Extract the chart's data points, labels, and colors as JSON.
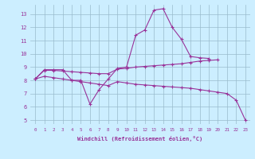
{
  "xlabel": "Windchill (Refroidissement éolien,°C)",
  "background_color": "#cceeff",
  "line_color": "#993399",
  "grid_color": "#99bbcc",
  "xlim": [
    -0.5,
    23.5
  ],
  "ylim": [
    4.7,
    13.7
  ],
  "xticks": [
    0,
    1,
    2,
    3,
    4,
    5,
    6,
    7,
    8,
    9,
    10,
    11,
    12,
    13,
    14,
    15,
    16,
    17,
    18,
    19,
    20,
    21,
    22,
    23
  ],
  "yticks": [
    5,
    6,
    7,
    8,
    9,
    10,
    11,
    12,
    13
  ],
  "series": [
    {
      "x": [
        0,
        1,
        2,
        3,
        4,
        5,
        6,
        7,
        8,
        9,
        10,
        11,
        12,
        13,
        14,
        15,
        16,
        17,
        18,
        19
      ],
      "y": [
        8.1,
        8.8,
        8.8,
        8.8,
        8.0,
        8.0,
        6.2,
        7.3,
        8.1,
        8.9,
        9.0,
        11.4,
        11.8,
        13.3,
        13.4,
        12.0,
        11.1,
        9.8,
        9.7,
        9.65
      ]
    },
    {
      "x": [
        0,
        1,
        2,
        3,
        4,
        5,
        6,
        7,
        8,
        9,
        10,
        11,
        12,
        13,
        14,
        15,
        16,
        17,
        18,
        19,
        20
      ],
      "y": [
        8.1,
        8.75,
        8.75,
        8.7,
        8.65,
        8.6,
        8.55,
        8.5,
        8.5,
        8.85,
        8.9,
        9.0,
        9.05,
        9.1,
        9.15,
        9.2,
        9.25,
        9.35,
        9.45,
        9.5,
        9.55
      ]
    },
    {
      "x": [
        0,
        1,
        2,
        3,
        4,
        5,
        6,
        7,
        8,
        9,
        10,
        11,
        12,
        13,
        14,
        15,
        16,
        17,
        18,
        19,
        20,
        21,
        22,
        23
      ],
      "y": [
        8.1,
        8.3,
        8.2,
        8.1,
        8.0,
        7.9,
        7.8,
        7.7,
        7.6,
        7.9,
        7.8,
        7.7,
        7.65,
        7.6,
        7.55,
        7.5,
        7.45,
        7.4,
        7.3,
        7.2,
        7.1,
        7.0,
        6.5,
        5.0
      ]
    }
  ]
}
